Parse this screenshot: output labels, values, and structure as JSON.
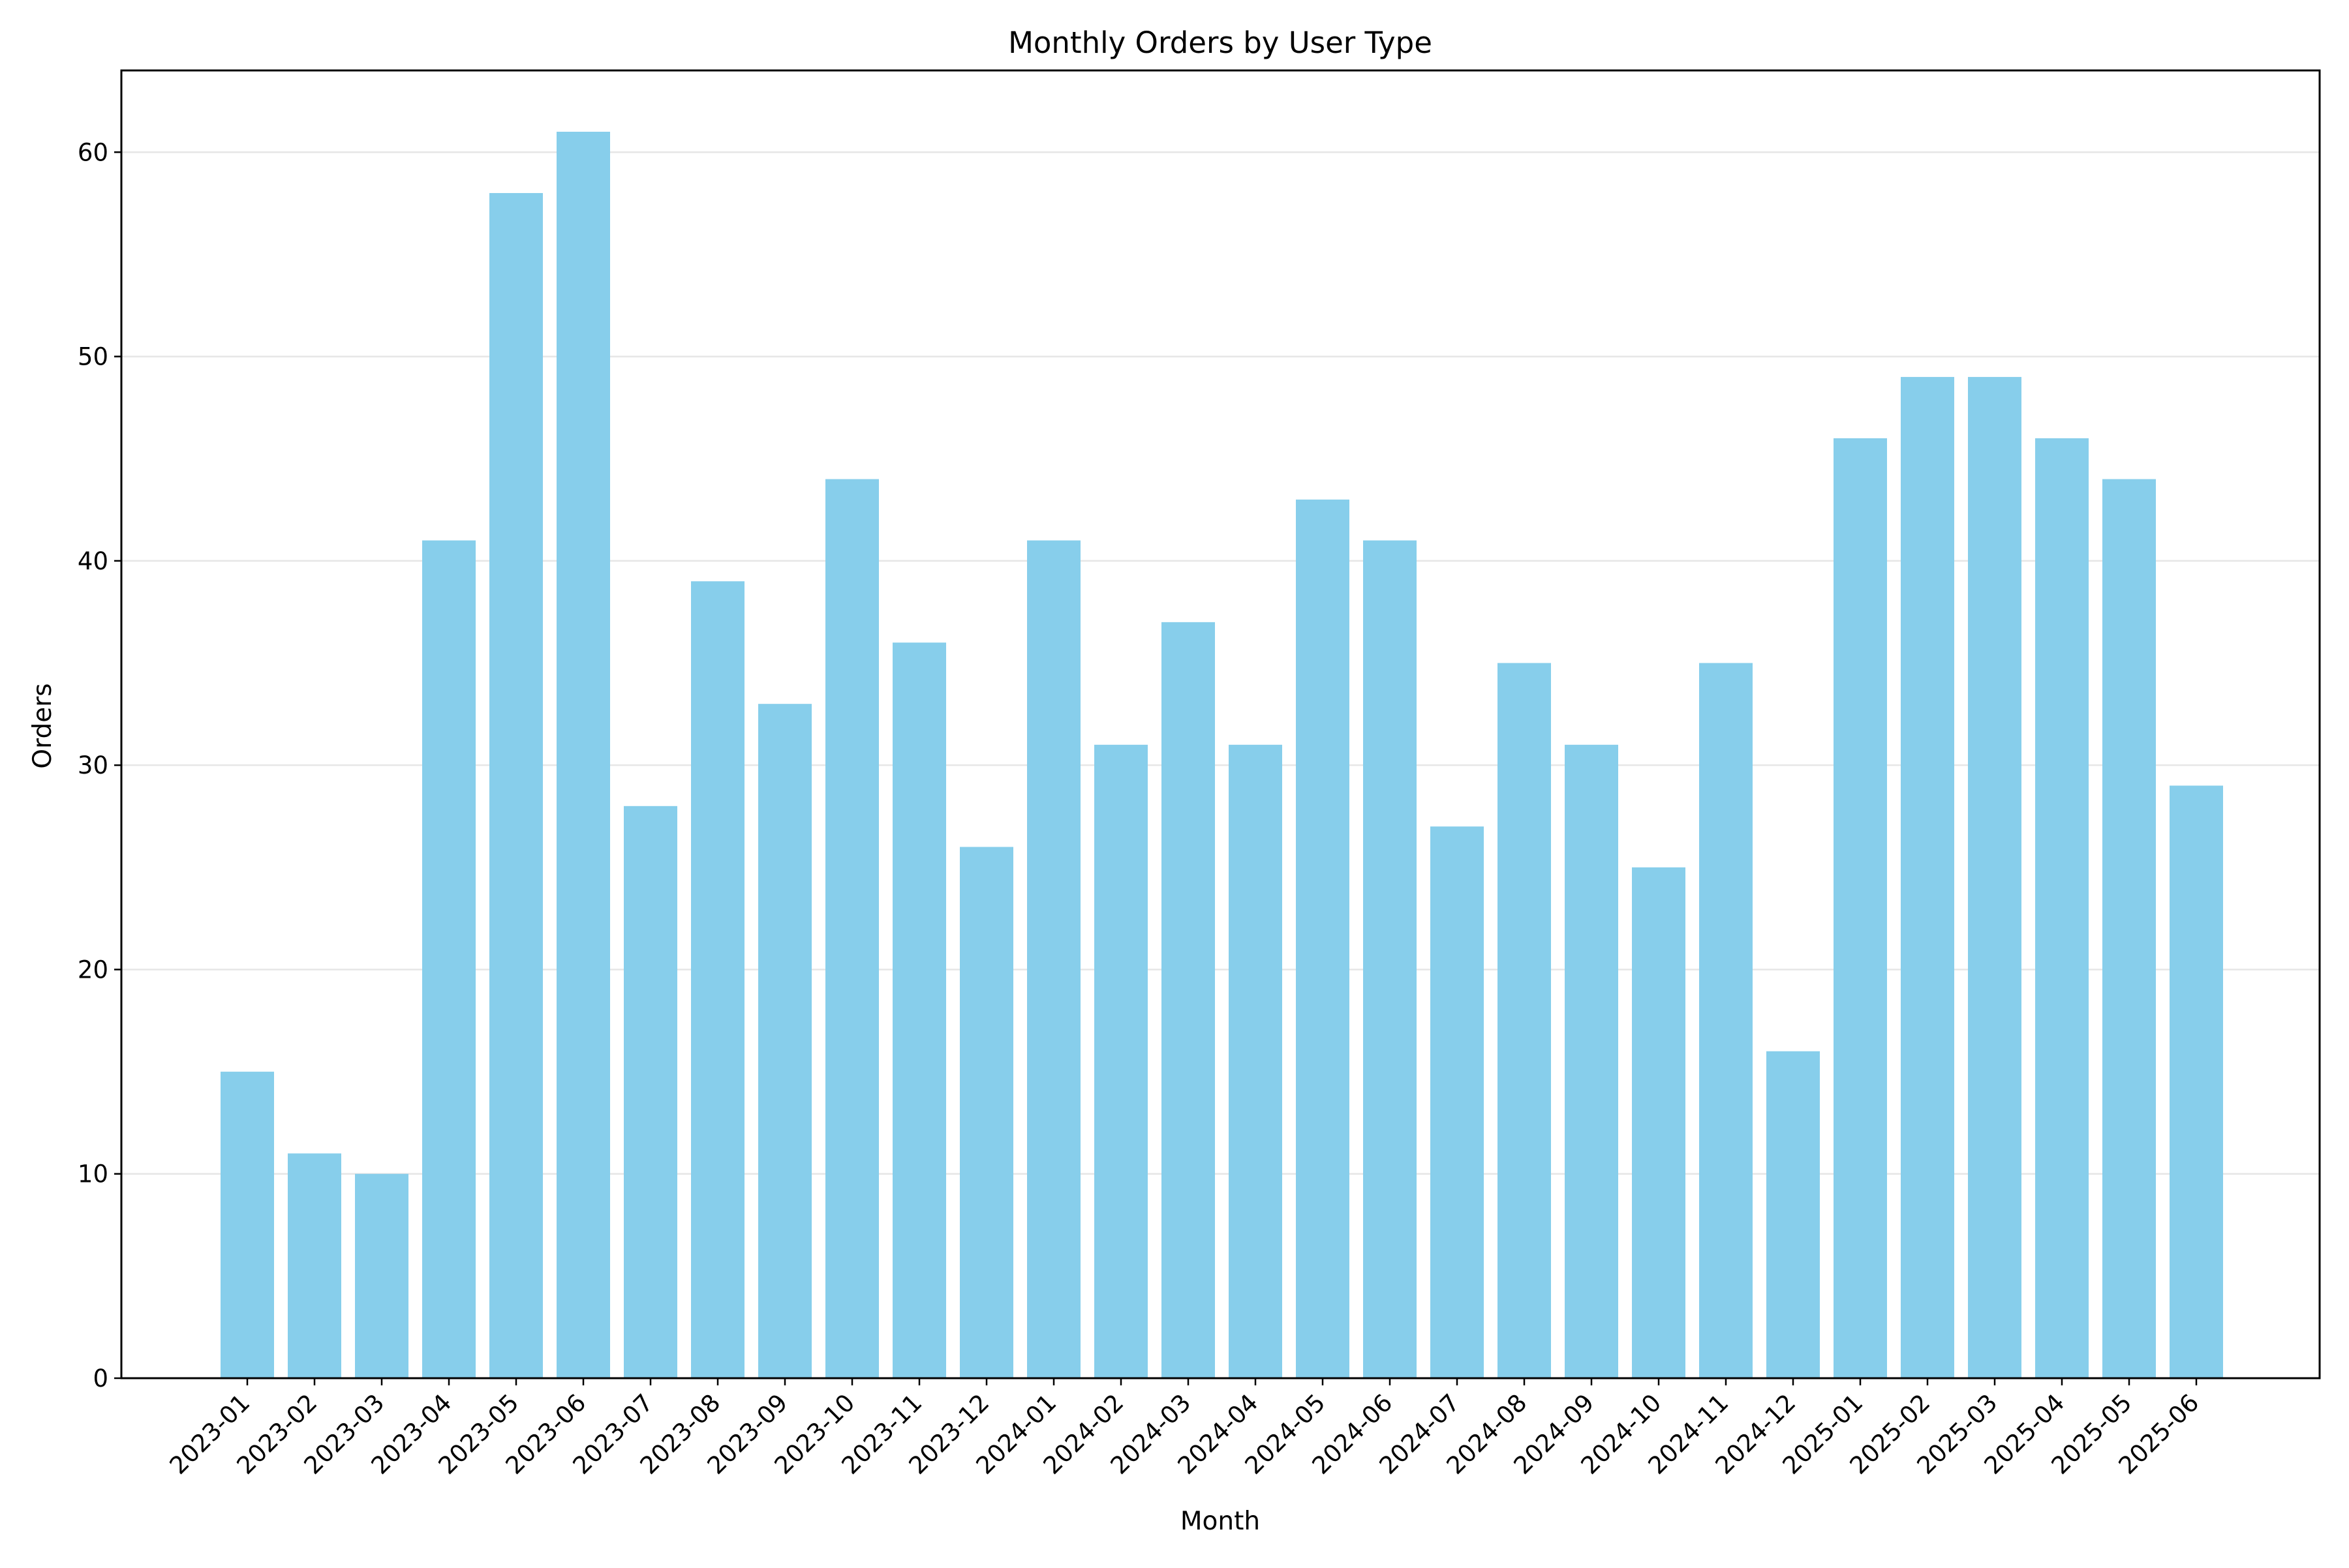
{
  "chart_data": {
    "type": "bar",
    "title": "Monthly Orders by User Type",
    "xlabel": "Month",
    "ylabel": "Orders",
    "ylim": [
      0,
      64
    ],
    "yticks": [
      0,
      10,
      20,
      30,
      40,
      50,
      60
    ],
    "grid": "y-axis major lines",
    "legend": "none",
    "bar_color": "#87ceeb",
    "categories": [
      "2023-01",
      "2023-02",
      "2023-03",
      "2023-04",
      "2023-05",
      "2023-06",
      "2023-07",
      "2023-08",
      "2023-09",
      "2023-10",
      "2023-11",
      "2023-12",
      "2024-01",
      "2024-02",
      "2024-03",
      "2024-04",
      "2024-05",
      "2024-06",
      "2024-07",
      "2024-08",
      "2024-09",
      "2024-10",
      "2024-11",
      "2024-12",
      "2025-01",
      "2025-02",
      "2025-03",
      "2025-04",
      "2025-05",
      "2025-06"
    ],
    "values": [
      15,
      11,
      10,
      41,
      58,
      61,
      28,
      39,
      33,
      44,
      36,
      26,
      41,
      31,
      37,
      31,
      43,
      41,
      27,
      35,
      31,
      25,
      35,
      16,
      46,
      49,
      49,
      46,
      44,
      29
    ]
  }
}
